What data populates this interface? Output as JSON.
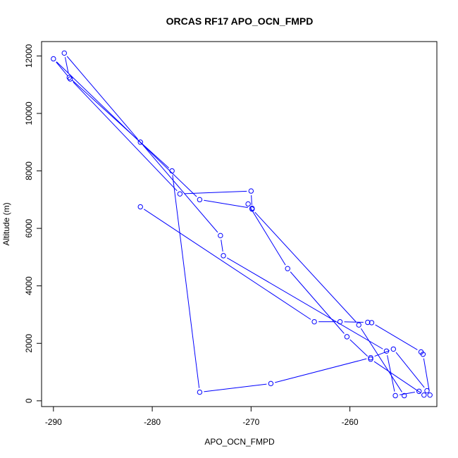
{
  "chart_data": {
    "type": "line",
    "title": "ORCAS RF17 APO_OCN_FMPD",
    "xlabel": "APO_OCN_FMPD",
    "ylabel": "Altitude (m)",
    "xlim": [
      -291.2,
      -251.2
    ],
    "ylim": [
      -200,
      12500
    ],
    "xticks": [
      -290,
      -280,
      -270,
      -260
    ],
    "xtick_labels": [
      "-290",
      "-280",
      "-270",
      "-260"
    ],
    "yticks": [
      0,
      2000,
      4000,
      6000,
      8000,
      10000,
      12000
    ],
    "ytick_labels": [
      "0",
      "2000",
      "4000",
      "6000",
      "8000",
      "10000",
      "12000"
    ],
    "grid": false,
    "series": [
      {
        "color": "#0000ff",
        "marker": "open-circle",
        "x": [
          -281.2,
          -263.6,
          -261.0,
          -258.2,
          -257.8,
          -252.8,
          -252.6,
          -251.9,
          -252.2,
          -255.6,
          -257.9,
          -268.0,
          -275.2,
          -278.0,
          -288.4,
          -288.9,
          -281.2,
          -273.1,
          -272.8,
          -256.3,
          -255.4,
          -253.0,
          -252.5,
          -257.9,
          -260.3,
          -266.3,
          -270.3,
          -269.9,
          -275.2,
          -290.0,
          -288.3,
          -277.2,
          -270.0,
          -269.9,
          -259.1,
          -254.5
        ],
        "y": [
          6750,
          2750,
          2750,
          2730,
          2720,
          1700,
          1620,
          200,
          350,
          1800,
          1500,
          600,
          300,
          8000,
          11250,
          12100,
          9000,
          5750,
          5050,
          1730,
          180,
          330,
          200,
          1450,
          2230,
          4600,
          6850,
          6700,
          7000,
          11900,
          11200,
          7200,
          7300,
          6670,
          2640,
          180
        ]
      }
    ]
  }
}
